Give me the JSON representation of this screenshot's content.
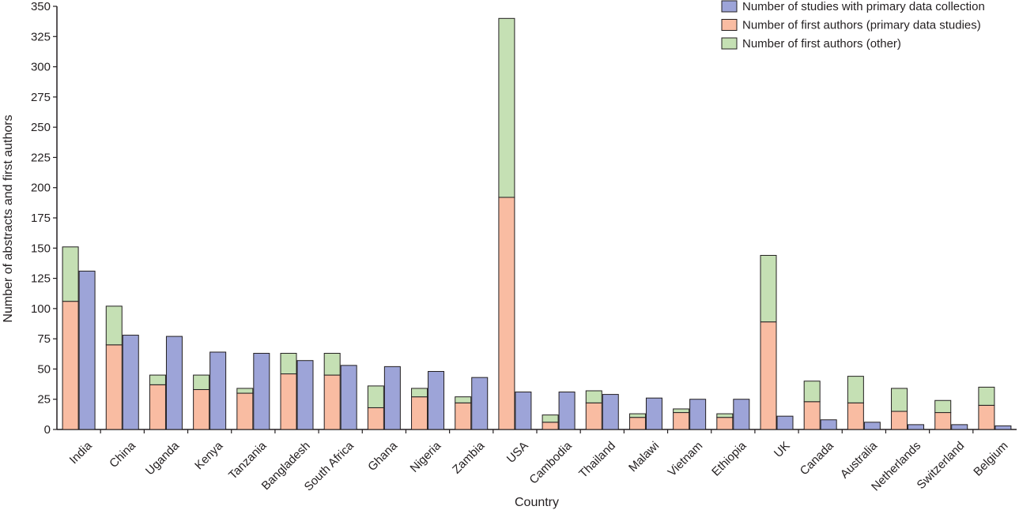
{
  "chart_data": {
    "type": "bar",
    "title": "",
    "xlabel": "Country",
    "ylabel": "Number of abstracts and first authors",
    "ylim": [
      0,
      350
    ],
    "yticks": [
      0,
      25,
      50,
      75,
      100,
      125,
      150,
      175,
      200,
      225,
      250,
      275,
      300,
      325,
      350
    ],
    "grid": false,
    "legend_position": "top-right",
    "categories": [
      "India",
      "China",
      "Uganda",
      "Kenya",
      "Tanzania",
      "Bangladesh",
      "South Africa",
      "Ghana",
      "Nigeria",
      "Zambia",
      "USA",
      "Cambodia",
      "Thailand",
      "Malawi",
      "Vietnam",
      "Ethiopia",
      "UK",
      "Canada",
      "Australia",
      "Netherlands",
      "Switzerland",
      "Belgium"
    ],
    "series": [
      {
        "name": "Number of studies with primary data collection",
        "color": "#9da4d8",
        "stack": "studies",
        "values": [
          131,
          78,
          77,
          64,
          63,
          57,
          53,
          52,
          48,
          43,
          31,
          31,
          29,
          26,
          25,
          25,
          11,
          8,
          6,
          4,
          4,
          3
        ]
      },
      {
        "name": "Number of first authors (primary data studies)",
        "color": "#f9bca2",
        "stack": "authors",
        "values": [
          106,
          70,
          37,
          33,
          30,
          46,
          45,
          18,
          27,
          22,
          192,
          6,
          22,
          10,
          14,
          10,
          89,
          23,
          22,
          15,
          14,
          20
        ]
      },
      {
        "name": "Number of first authors (other)",
        "color": "#c5e0b4",
        "stack": "authors",
        "values": [
          45,
          32,
          8,
          12,
          4,
          17,
          18,
          18,
          7,
          5,
          148,
          6,
          10,
          3,
          3,
          3,
          55,
          17,
          22,
          19,
          10,
          15
        ]
      }
    ]
  }
}
